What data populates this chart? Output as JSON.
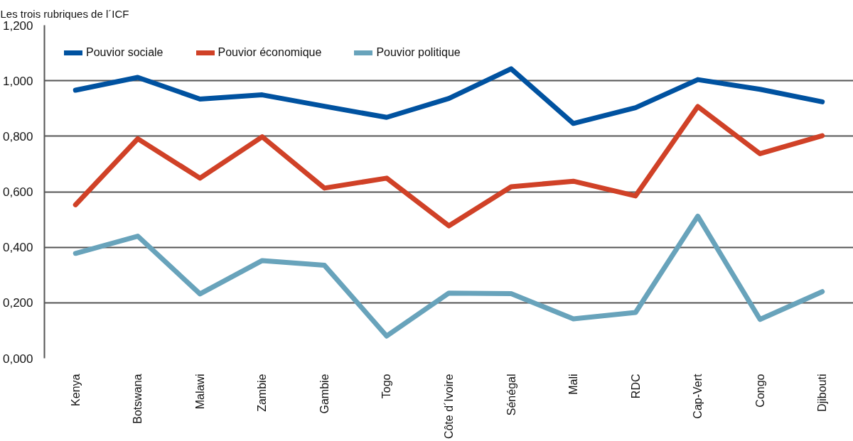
{
  "chart_data": {
    "type": "line",
    "title": "Les trois rubriques de l´ICF",
    "categories": [
      "Kenya",
      "Botswana",
      "Malawi",
      "Zambie",
      "Gambie",
      "Togo",
      "Côte d´Ivoire",
      "Sénégal",
      "Mali",
      "RDC",
      "Cap-Vert",
      "Congo",
      "Djibouti"
    ],
    "series": [
      {
        "name": "Pouvior sociale",
        "color": "#0052a0",
        "values": [
          0.966,
          1.012,
          0.934,
          0.949,
          0.908,
          0.868,
          0.936,
          1.043,
          0.846,
          0.903,
          1.004,
          0.969,
          0.924
        ]
      },
      {
        "name": "Pouvior économique",
        "color": "#d04127",
        "values": [
          0.553,
          0.791,
          0.649,
          0.798,
          0.613,
          0.649,
          0.477,
          0.618,
          0.638,
          0.585,
          0.907,
          0.737,
          0.802
        ]
      },
      {
        "name": "Pouvior politique",
        "color": "#68a3bb",
        "values": [
          0.378,
          0.44,
          0.232,
          0.352,
          0.335,
          0.08,
          0.235,
          0.233,
          0.142,
          0.165,
          0.512,
          0.14,
          0.24
        ]
      }
    ],
    "ylim": [
      0,
      1.2
    ],
    "yticks": [
      {
        "value": 0,
        "label": "0,000"
      },
      {
        "value": 0.2,
        "label": "0,200"
      },
      {
        "value": 0.4,
        "label": "0,400"
      },
      {
        "value": 0.6,
        "label": "0,600"
      },
      {
        "value": 0.8,
        "label": "0,800"
      },
      {
        "value": 1.0,
        "label": "1,000"
      },
      {
        "value": 1.2,
        "label": "1,200"
      }
    ],
    "grid": "y",
    "legend": "top left",
    "line_style": "solid"
  }
}
